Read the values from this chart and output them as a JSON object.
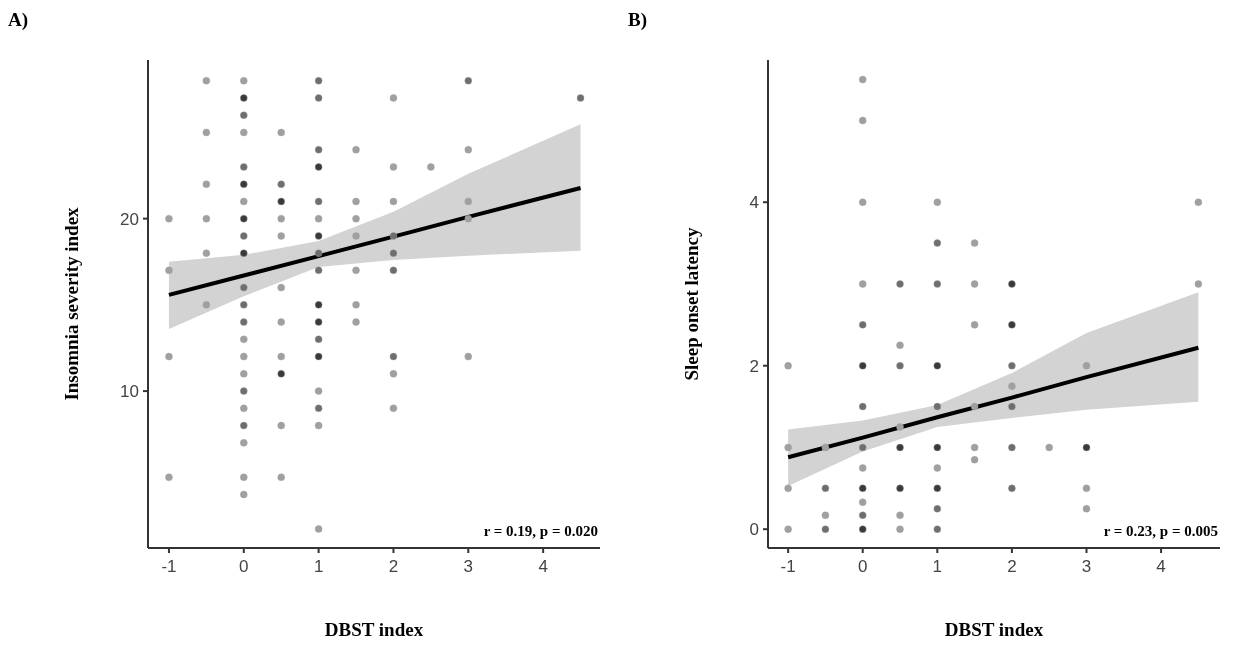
{
  "chart_data": [
    {
      "type": "scatter",
      "title": "A)",
      "xlabel": "DBST index",
      "ylabel": "Insomnia severity index",
      "xlim": [
        -1.28,
        4.76
      ],
      "ylim": [
        0.9,
        29.2
      ],
      "xticks": [
        -1,
        0,
        1,
        2,
        3,
        4
      ],
      "yticks": [
        10,
        20
      ],
      "marker": "circle",
      "annotations": [
        "r = 0.19, p = 0.020"
      ],
      "series": [
        {
          "color": "#a0a0a0",
          "x": [
            -1,
            -1,
            -1,
            -1,
            -0.5,
            -0.5,
            -0.5,
            -0.5,
            -0.5,
            -0.5,
            0,
            0,
            0,
            0,
            0,
            0,
            0,
            0,
            0,
            0,
            0,
            0,
            0,
            0,
            0,
            0,
            0,
            0,
            0,
            0,
            0,
            0,
            0.5,
            0.5,
            0.5,
            0.5,
            0.5,
            0.5,
            0.5,
            0.5,
            0.5,
            0.5,
            0.5,
            1,
            1,
            1,
            1,
            1,
            1,
            1,
            1,
            1,
            1,
            1,
            1,
            1,
            1,
            1,
            1,
            1,
            1.5,
            1.5,
            1.5,
            1.5,
            1.5,
            1.5,
            1.5,
            2,
            2,
            2,
            2,
            2,
            2,
            2,
            2,
            2,
            2.5,
            3,
            3,
            3,
            3,
            3,
            4.5
          ],
          "values": [
            20,
            17,
            12,
            5,
            28,
            25,
            22,
            20,
            18,
            15,
            28,
            27,
            26,
            25,
            23,
            22,
            21,
            20,
            19,
            18,
            16,
            15,
            14,
            13,
            12,
            11,
            10,
            9,
            8,
            7,
            5,
            4,
            25,
            22,
            21,
            20,
            19,
            16,
            14,
            12,
            11,
            8,
            5,
            28,
            27,
            24,
            23,
            21,
            20,
            19,
            18,
            17,
            15,
            14,
            13,
            12,
            10,
            9,
            8,
            2,
            24,
            21,
            20,
            19,
            17,
            15,
            14,
            27,
            23,
            21,
            19,
            18,
            17,
            12,
            11,
            9,
            23,
            28,
            24,
            21,
            20,
            12,
            27
          ],
          "colors": [
            "#a0a0a0",
            "#a0a0a0",
            "#a0a0a0",
            "#a0a0a0",
            "#a0a0a0",
            "#a0a0a0",
            "#a0a0a0",
            "#a0a0a0",
            "#a0a0a0",
            "#a0a0a0",
            "#a0a0a0",
            "#3a3a3a",
            "#6e6e6e",
            "#a0a0a0",
            "#6e6e6e",
            "#3a3a3a",
            "#a0a0a0",
            "#3a3a3a",
            "#6e6e6e",
            "#3a3a3a",
            "#6e6e6e",
            "#6e6e6e",
            "#6e6e6e",
            "#a0a0a0",
            "#a0a0a0",
            "#a0a0a0",
            "#6e6e6e",
            "#a0a0a0",
            "#6e6e6e",
            "#a0a0a0",
            "#a0a0a0",
            "#a0a0a0",
            "#a0a0a0",
            "#6e6e6e",
            "#3a3a3a",
            "#a0a0a0",
            "#a0a0a0",
            "#a0a0a0",
            "#a0a0a0",
            "#a0a0a0",
            "#3a3a3a",
            "#a0a0a0",
            "#a0a0a0",
            "#6e6e6e",
            "#6e6e6e",
            "#6e6e6e",
            "#3a3a3a",
            "#6e6e6e",
            "#a0a0a0",
            "#3a3a3a",
            "#6e6e6e",
            "#6e6e6e",
            "#3a3a3a",
            "#3a3a3a",
            "#6e6e6e",
            "#3a3a3a",
            "#a0a0a0",
            "#6e6e6e",
            "#a0a0a0",
            "#a0a0a0",
            "#a0a0a0",
            "#a0a0a0",
            "#a0a0a0",
            "#a0a0a0",
            "#a0a0a0",
            "#a0a0a0",
            "#a0a0a0",
            "#a0a0a0",
            "#a0a0a0",
            "#a0a0a0",
            "#6e6e6e",
            "#6e6e6e",
            "#6e6e6e",
            "#6e6e6e",
            "#a0a0a0",
            "#a0a0a0",
            "#a0a0a0",
            "#6e6e6e",
            "#a0a0a0",
            "#a0a0a0",
            "#a0a0a0",
            "#a0a0a0",
            "#6e6e6e"
          ]
        },
        {
          "type": "line",
          "color": "#000000",
          "line_style": "solid",
          "marker": "none",
          "x": [
            -1,
            0,
            1,
            2,
            3,
            4.5
          ],
          "values": [
            15.58,
            16.7,
            17.83,
            18.96,
            20.1,
            21.78
          ],
          "lower": [
            13.6,
            15.5,
            17.2,
            17.6,
            17.85,
            18.14
          ],
          "upper": [
            17.5,
            17.9,
            18.7,
            20.4,
            22.6,
            25.47
          ]
        }
      ]
    },
    {
      "type": "scatter",
      "title": "B)",
      "xlabel": "DBST index",
      "ylabel": "Sleep onset latency",
      "xlim": [
        -1.27,
        4.79
      ],
      "ylim": [
        -0.23,
        5.74
      ],
      "xticks": [
        -1,
        0,
        1,
        2,
        3,
        4
      ],
      "yticks": [
        0,
        2,
        4
      ],
      "marker": "circle",
      "annotations": [
        "r = 0.23, p = 0.005"
      ],
      "series": [
        {
          "color": "#a0a0a0",
          "x": [
            -1,
            -1,
            -1,
            -1,
            -0.5,
            -0.5,
            -0.5,
            -0.5,
            0,
            0,
            0,
            0,
            0,
            0,
            0,
            0,
            0,
            0,
            0,
            0,
            0,
            0.5,
            0.5,
            0.5,
            0.5,
            0.5,
            0.5,
            0.5,
            0.5,
            1,
            1,
            1,
            1,
            1,
            1,
            1,
            1,
            1,
            1,
            1.5,
            1.5,
            1.5,
            1.5,
            1.5,
            1.5,
            2,
            2,
            2,
            2,
            2,
            2,
            2,
            2.5,
            3,
            3,
            3,
            3,
            4.5,
            4.5
          ],
          "values": [
            2,
            1,
            0.5,
            0,
            1,
            0.5,
            0.17,
            0,
            5.5,
            5,
            4,
            3,
            2.5,
            2,
            1.5,
            1,
            0.75,
            0.5,
            0.33,
            0.17,
            0,
            3,
            2.25,
            2,
            1.25,
            1,
            0.5,
            0.17,
            0,
            4,
            3.5,
            3,
            2,
            1.5,
            1,
            0.75,
            0.5,
            0.25,
            0,
            3.5,
            3,
            2.5,
            1.5,
            1,
            0.85,
            3,
            2.5,
            2,
            1.75,
            1.5,
            1,
            0.5,
            1,
            2,
            1,
            0.5,
            0.25,
            4,
            3
          ],
          "colors": [
            "#a0a0a0",
            "#a0a0a0",
            "#a0a0a0",
            "#a0a0a0",
            "#a0a0a0",
            "#6e6e6e",
            "#a0a0a0",
            "#6e6e6e",
            "#a0a0a0",
            "#a0a0a0",
            "#a0a0a0",
            "#a0a0a0",
            "#6e6e6e",
            "#3a3a3a",
            "#6e6e6e",
            "#6e6e6e",
            "#a0a0a0",
            "#3a3a3a",
            "#a0a0a0",
            "#6e6e6e",
            "#3a3a3a",
            "#6e6e6e",
            "#a0a0a0",
            "#6e6e6e",
            "#a0a0a0",
            "#3a3a3a",
            "#3a3a3a",
            "#a0a0a0",
            "#a0a0a0",
            "#a0a0a0",
            "#6e6e6e",
            "#6e6e6e",
            "#3a3a3a",
            "#6e6e6e",
            "#3a3a3a",
            "#a0a0a0",
            "#3a3a3a",
            "#6e6e6e",
            "#6e6e6e",
            "#a0a0a0",
            "#a0a0a0",
            "#a0a0a0",
            "#a0a0a0",
            "#a0a0a0",
            "#a0a0a0",
            "#3a3a3a",
            "#3a3a3a",
            "#6e6e6e",
            "#a0a0a0",
            "#6e6e6e",
            "#6e6e6e",
            "#6e6e6e",
            "#a0a0a0",
            "#a0a0a0",
            "#3a3a3a",
            "#a0a0a0",
            "#a0a0a0",
            "#a0a0a0",
            "#a0a0a0"
          ]
        },
        {
          "type": "line",
          "color": "#000000",
          "line_style": "solid",
          "marker": "none",
          "x": [
            -1,
            0,
            1,
            2,
            3,
            4.5
          ],
          "values": [
            0.88,
            1.12,
            1.37,
            1.61,
            1.86,
            2.22
          ],
          "lower": [
            0.53,
            0.95,
            1.25,
            1.36,
            1.46,
            1.56
          ],
          "upper": [
            1.22,
            1.33,
            1.52,
            1.91,
            2.4,
            2.9
          ]
        }
      ]
    }
  ]
}
